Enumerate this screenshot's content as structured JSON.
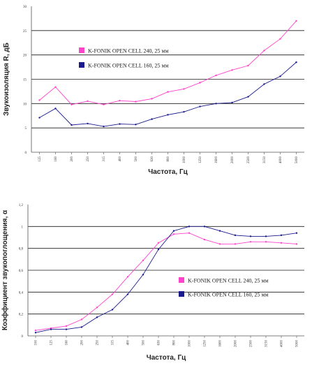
{
  "chart_data": [
    {
      "type": "line",
      "ylabel": "Звукоизоляция R, дБ",
      "xlabel": "Частота, Гц",
      "ylim": [
        0,
        30
      ],
      "yticks": [
        "0",
        "5",
        "10",
        "15",
        "20",
        "25",
        "30"
      ],
      "grid": "horizontal",
      "legend_position": "center",
      "categories": [
        "125",
        "160",
        "200",
        "250",
        "315",
        "400",
        "500",
        "630",
        "800",
        "1000",
        "1250",
        "1600",
        "2000",
        "2500",
        "3150",
        "4000",
        "5000"
      ],
      "series": [
        {
          "name": "K-FONIK OPEN CELL 240, 25 мм",
          "color": "#ff44cc",
          "values": [
            10.7,
            13.4,
            9.8,
            10.5,
            9.8,
            10.6,
            10.4,
            11.0,
            12.4,
            13.0,
            14.3,
            15.8,
            16.9,
            17.8,
            20.9,
            23.3,
            27.0
          ]
        },
        {
          "name": "K-FONIK OPEN CELL 160, 25 мм",
          "color": "#1a1a8c",
          "values": [
            7.1,
            9.0,
            5.6,
            5.9,
            5.3,
            5.8,
            5.7,
            6.8,
            7.7,
            8.3,
            9.4,
            10.0,
            10.2,
            11.4,
            14.0,
            15.6,
            18.5
          ]
        }
      ]
    },
    {
      "type": "line",
      "ylabel": "Коэффициент звукопоглощения, α",
      "xlabel": "Частота, Гц",
      "ylim": [
        0,
        1.2
      ],
      "yticks": [
        "0",
        "0,2",
        "0,4",
        "0,6",
        "0,8",
        "1",
        "1,2"
      ],
      "grid": "horizontal",
      "legend_position": "center-right",
      "categories": [
        "100",
        "125",
        "160",
        "200",
        "250",
        "315",
        "400",
        "500",
        "630",
        "800",
        "1000",
        "1250",
        "1600",
        "2000",
        "2500",
        "3150",
        "4000",
        "5000"
      ],
      "series": [
        {
          "name": "K-FONIK OPEN CELL 240, 25 мм",
          "color": "#ff44cc",
          "values": [
            0.05,
            0.07,
            0.09,
            0.15,
            0.26,
            0.38,
            0.54,
            0.69,
            0.85,
            0.93,
            0.94,
            0.88,
            0.84,
            0.84,
            0.86,
            0.86,
            0.85,
            0.84
          ]
        },
        {
          "name": "K-FONIK OPEN CELL 160, 25 мм",
          "color": "#1a1a8c",
          "values": [
            0.03,
            0.06,
            0.06,
            0.08,
            0.17,
            0.24,
            0.38,
            0.56,
            0.79,
            0.96,
            1.0,
            1.0,
            0.96,
            0.92,
            0.91,
            0.91,
            0.92,
            0.94
          ]
        }
      ]
    }
  ]
}
